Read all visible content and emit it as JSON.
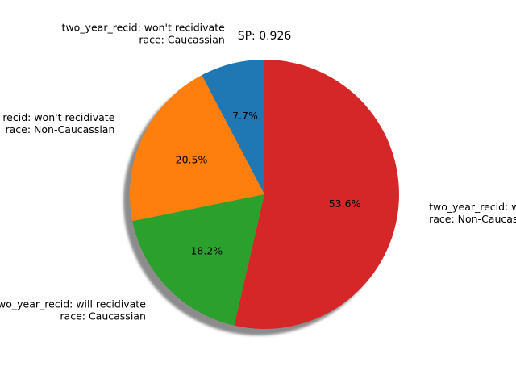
{
  "chart_data": {
    "type": "pie",
    "title": "SP: 0.926",
    "start_angle_deg": 90,
    "direction": "counterclockwise",
    "shadow": true,
    "slices": [
      {
        "label_lines": [
          "two_year_recid: won't recidivate",
          "race: Caucassian"
        ],
        "pct_label": "7.7%",
        "value": 7.7,
        "color": "#1f77b4"
      },
      {
        "label_lines": [
          "two_year_recid: won't recidivate",
          "race: Non-Caucassian"
        ],
        "pct_label": "20.5%",
        "value": 20.5,
        "color": "#ff7f0e"
      },
      {
        "label_lines": [
          "two_year_recid: will recidivate",
          "race: Caucassian"
        ],
        "pct_label": "18.2%",
        "value": 18.2,
        "color": "#2ca02c"
      },
      {
        "label_lines": [
          "two_year_recid: will recidivate",
          "race: Non-Caucassian"
        ],
        "pct_label": "53.6%",
        "value": 53.6,
        "color": "#d62728"
      }
    ]
  }
}
